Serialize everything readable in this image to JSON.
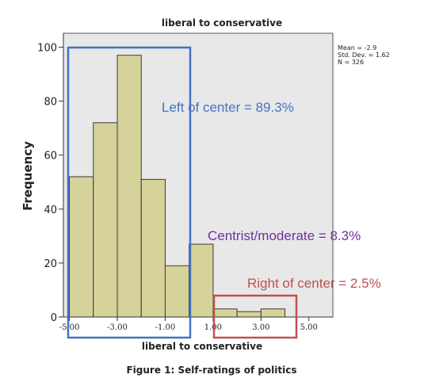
{
  "caption": "Figure 1: Self-ratings of politics",
  "chart_data": {
    "type": "bar",
    "title": "liberal to conservative",
    "xlabel": "liberal to conservative",
    "ylabel": "Frequency",
    "bin_width": 1,
    "bins": [
      {
        "x0": -5.0,
        "x1": -4.0,
        "count": 52
      },
      {
        "x0": -4.0,
        "x1": -3.0,
        "count": 72
      },
      {
        "x0": -3.0,
        "x1": -2.0,
        "count": 97
      },
      {
        "x0": -2.0,
        "x1": -1.0,
        "count": 51
      },
      {
        "x0": -1.0,
        "x1": 0.0,
        "count": 19
      },
      {
        "x0": 0.0,
        "x1": 1.0,
        "count": 27
      },
      {
        "x0": 1.0,
        "x1": 2.0,
        "count": 3
      },
      {
        "x0": 2.0,
        "x1": 3.0,
        "count": 2
      },
      {
        "x0": 3.0,
        "x1": 4.0,
        "count": 3
      }
    ],
    "xlim": [
      -5.25,
      6.0
    ],
    "ylim": [
      0,
      104
    ],
    "x_ticks": [
      -5,
      -3,
      -1,
      1,
      3,
      5
    ],
    "x_tick_labels": [
      "-5.00",
      "-3.00",
      "-1.00",
      "1.00",
      "3.00",
      "5.00"
    ],
    "y_ticks": [
      0,
      20,
      40,
      60,
      80,
      100
    ],
    "y_tick_labels": [
      "0",
      "20",
      "40",
      "60",
      "80",
      "100"
    ],
    "stats": [
      "Mean = -2.9",
      "Std. Dev. = 1.62",
      "N = 326"
    ],
    "annotations": [
      {
        "text": "Left of center = 89.3%",
        "color": "#4472c4"
      },
      {
        "text": "Centrist/moderate = 8.3%",
        "color": "#7030a0"
      },
      {
        "text": "Right of center = 2.5%",
        "color": "#c0504d"
      }
    ],
    "bar_color": "#d6d39a",
    "plot_bg": "#e8e8e8",
    "highlight_boxes": [
      {
        "color": "#4472c4",
        "x0": -5.0,
        "x1": 0.0,
        "y0": 0,
        "y1": 100
      },
      {
        "color": "#c0504d",
        "x0": 1.0,
        "x1": 4.0,
        "y0": 0,
        "y1": 8
      }
    ]
  }
}
